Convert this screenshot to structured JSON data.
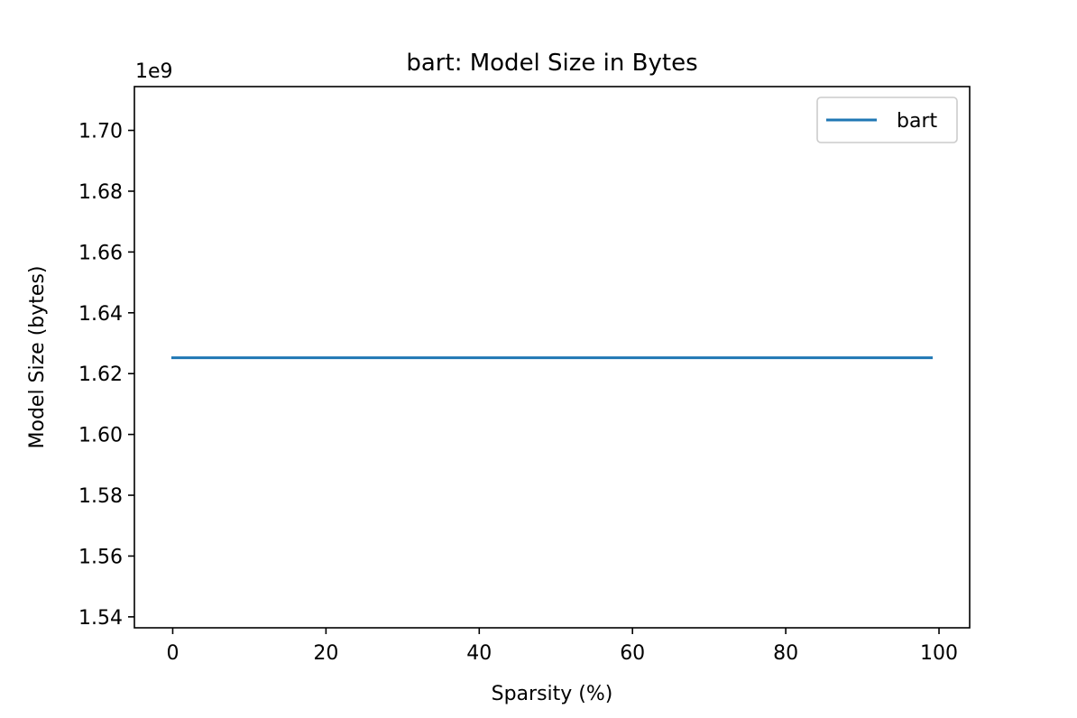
{
  "chart_data": {
    "type": "line",
    "title": "bart: Model Size in Bytes",
    "xlabel": "Sparsity (%)",
    "ylabel": "Model Size (bytes)",
    "y_offset_label": "1e9",
    "xlim": [
      -5,
      104
    ],
    "ylim": [
      1.5364,
      1.7144
    ],
    "x_ticks": [
      0,
      20,
      40,
      60,
      80,
      100
    ],
    "x_tick_labels": [
      "0",
      "20",
      "40",
      "60",
      "80",
      "100"
    ],
    "y_ticks": [
      1.54,
      1.56,
      1.58,
      1.6,
      1.62,
      1.64,
      1.66,
      1.68,
      1.7
    ],
    "y_tick_labels": [
      "1.54",
      "1.56",
      "1.58",
      "1.60",
      "1.62",
      "1.64",
      "1.66",
      "1.68",
      "1.70"
    ],
    "grid": false,
    "legend_position": "top-right",
    "series": [
      {
        "name": "bart",
        "color": "#1f77b4",
        "x": [
          0,
          99
        ],
        "y": [
          1.6252,
          1.6252
        ]
      }
    ]
  }
}
